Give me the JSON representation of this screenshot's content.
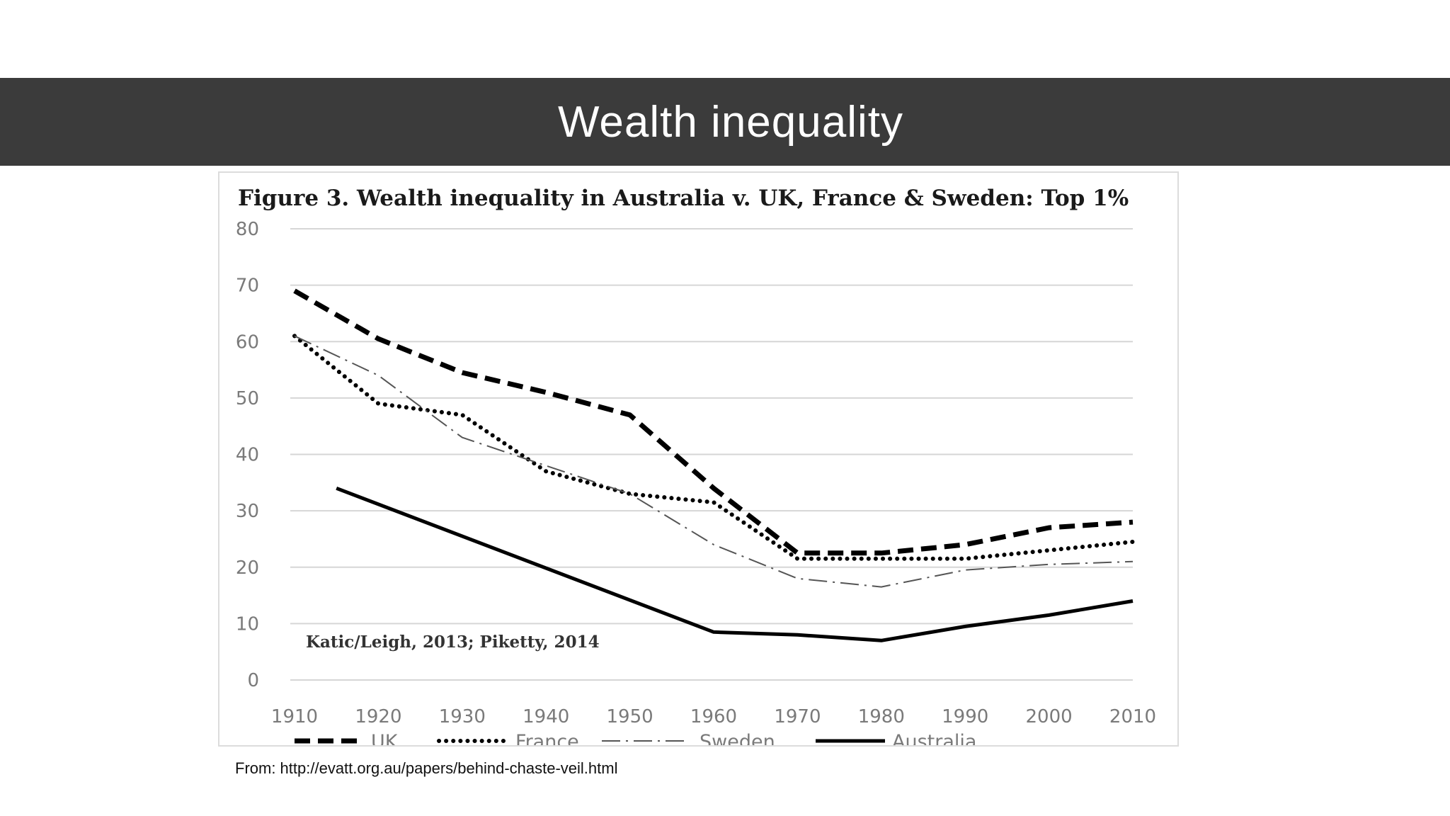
{
  "slide": {
    "title": "Wealth inequality",
    "source": "From: http://evatt.org.au/papers/behind-chaste-veil.html"
  },
  "chart_data": {
    "type": "line",
    "title": "Figure 3. Wealth inequality in Australia v. UK, France & Sweden: Top 1%",
    "annotation": "Katic/Leigh, 2013; Piketty, 2014",
    "xlabel": "",
    "ylabel": "",
    "xlim": [
      1910,
      2010
    ],
    "ylim": [
      0,
      80
    ],
    "x_ticks": [
      1910,
      1920,
      1930,
      1940,
      1950,
      1960,
      1970,
      1980,
      1990,
      2000,
      2010
    ],
    "y_ticks": [
      0,
      10,
      20,
      30,
      40,
      50,
      60,
      70,
      80
    ],
    "grid": true,
    "legend_position": "bottom",
    "series": [
      {
        "name": "UK",
        "style": "dashed",
        "color": "#000000",
        "x": [
          1910,
          1920,
          1930,
          1940,
          1950,
          1960,
          1970,
          1980,
          1990,
          2000,
          2010
        ],
        "y": [
          69,
          60.5,
          54.5,
          51,
          47,
          34,
          22.5,
          22.5,
          24,
          27,
          28
        ]
      },
      {
        "name": "France",
        "style": "dotted",
        "color": "#000000",
        "x": [
          1910,
          1920,
          1930,
          1940,
          1950,
          1960,
          1970,
          1980,
          1990,
          2000,
          2010
        ],
        "y": [
          61,
          49,
          47,
          37,
          33,
          31.5,
          21.5,
          21.5,
          21.5,
          23,
          24.5
        ]
      },
      {
        "name": "Sweden",
        "style": "dash-dot",
        "color": "#555555",
        "x": [
          1910,
          1920,
          1930,
          1940,
          1950,
          1960,
          1970,
          1980,
          1990,
          2000,
          2010
        ],
        "y": [
          61,
          54,
          43,
          38,
          33,
          24,
          18,
          16.5,
          19.5,
          20.5,
          21
        ]
      },
      {
        "name": "Australia",
        "style": "solid",
        "color": "#000000",
        "x": [
          1915,
          1960,
          1970,
          1980,
          1990,
          2000,
          2010
        ],
        "y": [
          34,
          8.5,
          8,
          7,
          9.5,
          11.5,
          14
        ]
      }
    ]
  }
}
